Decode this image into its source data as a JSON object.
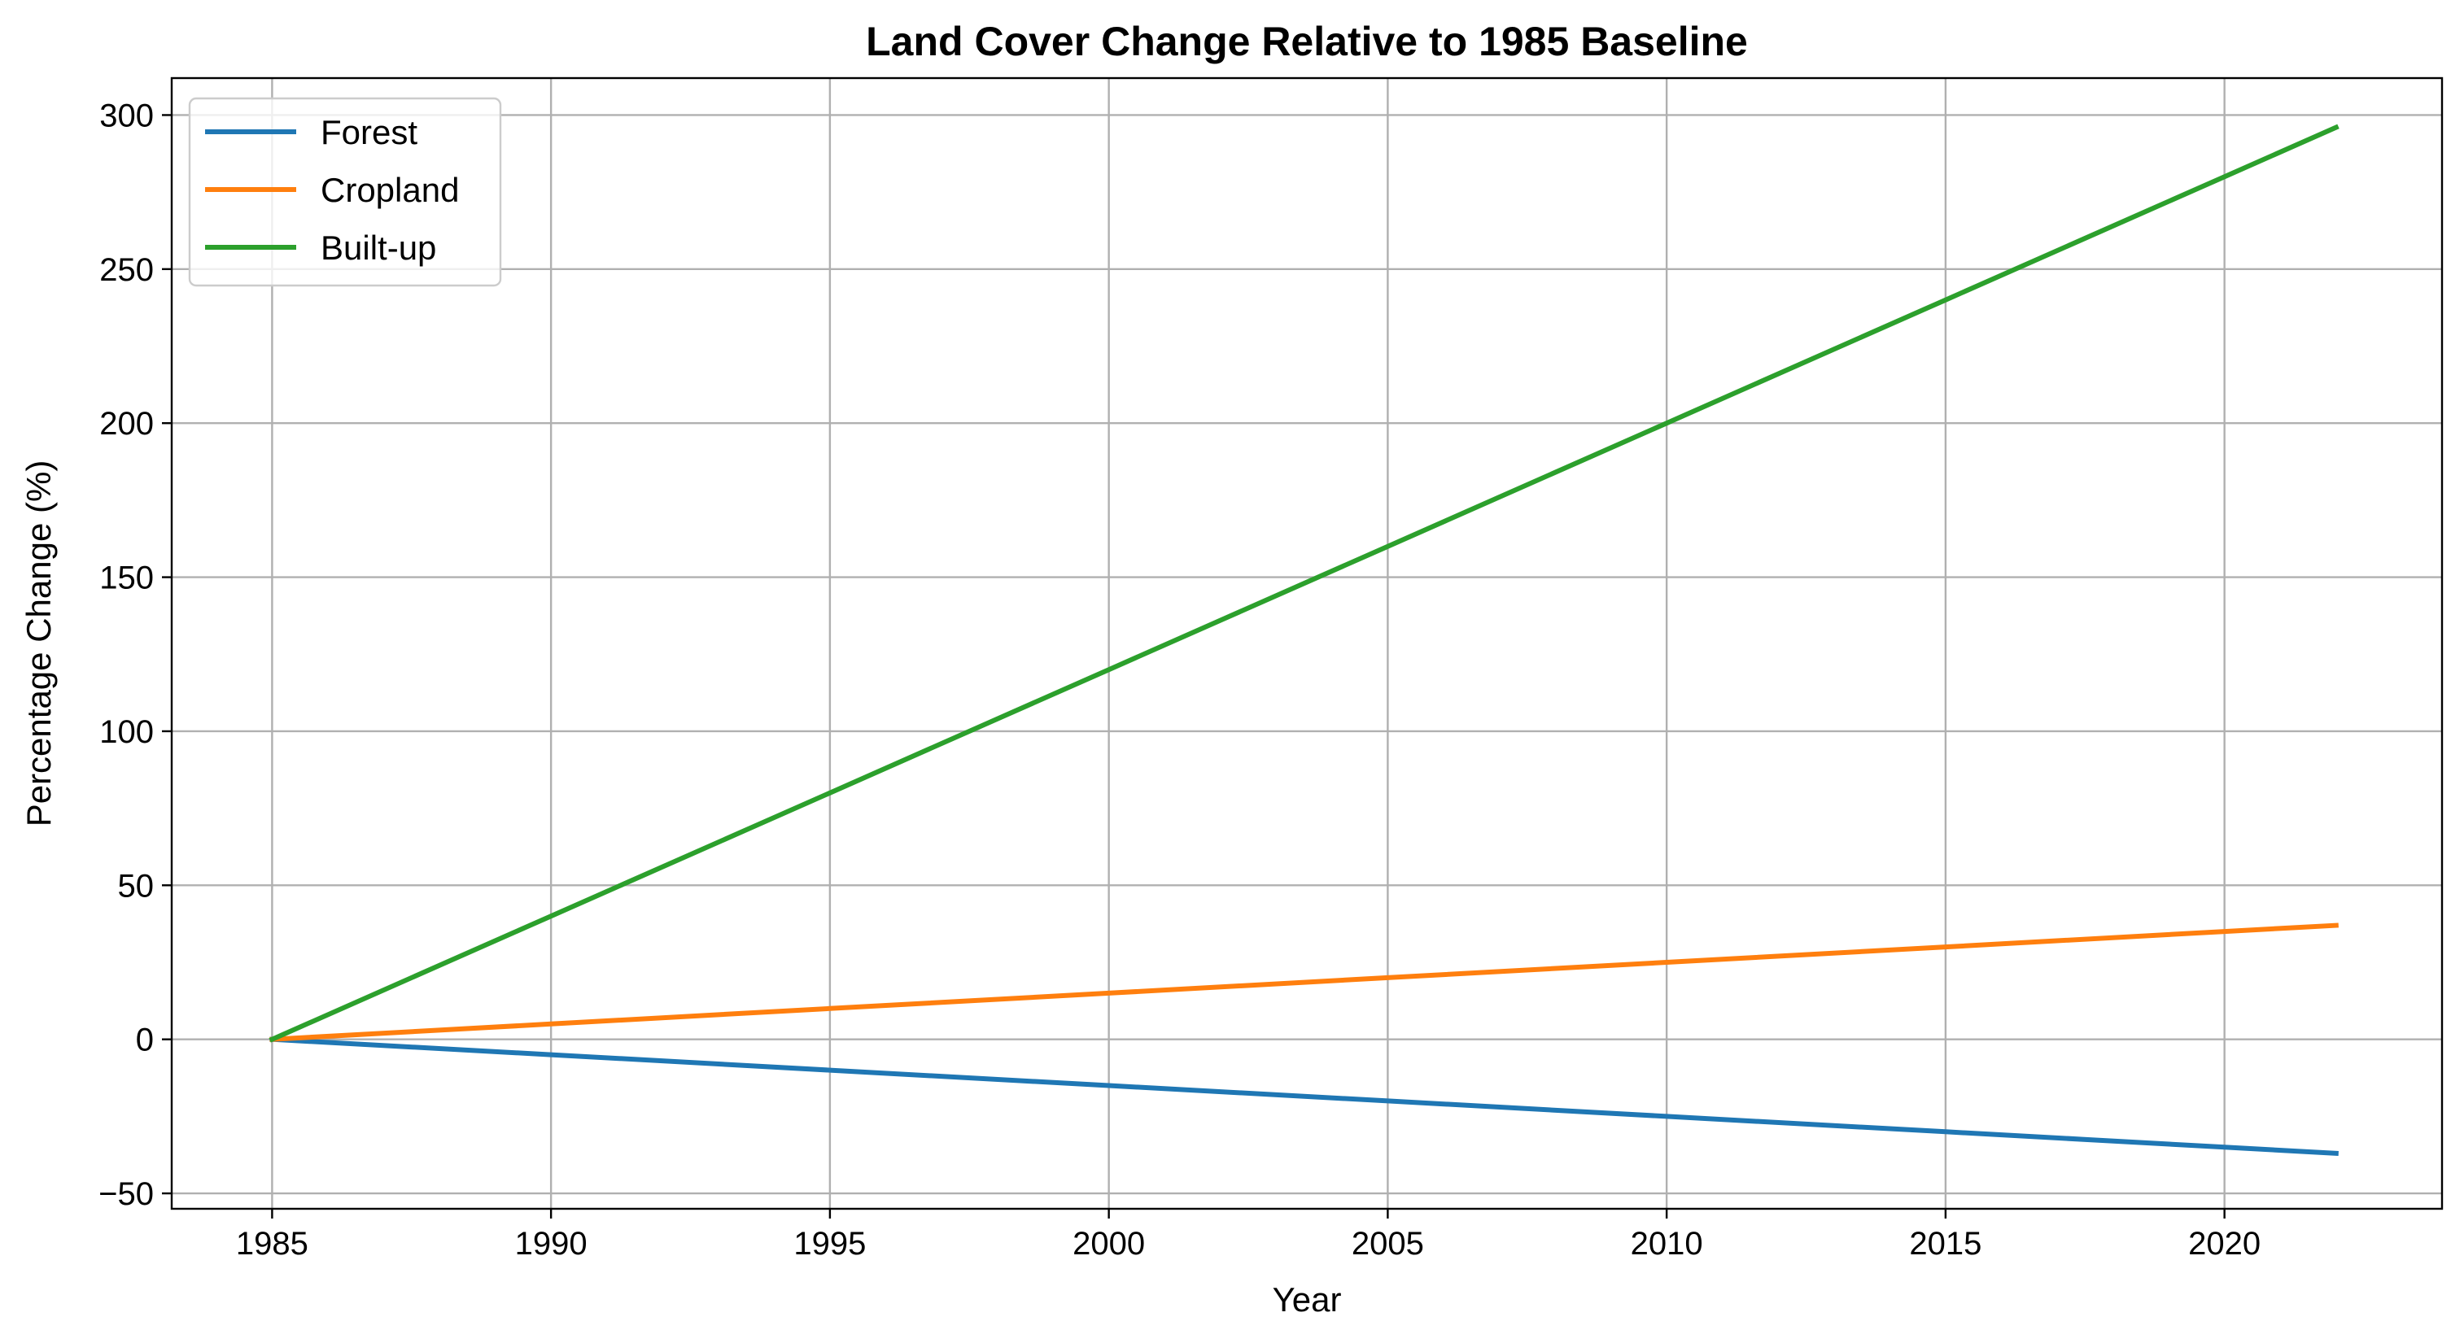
{
  "chart_data": {
    "type": "line",
    "title": "Land Cover Change Relative to 1985 Baseline",
    "xlabel": "Year",
    "ylabel": "Percentage Change (%)",
    "xlim": [
      1983.2,
      2023.9
    ],
    "ylim": [
      -55,
      312
    ],
    "xticks": [
      1985,
      1990,
      1995,
      2000,
      2005,
      2010,
      2015,
      2020
    ],
    "yticks": [
      -50,
      0,
      50,
      100,
      150,
      200,
      250,
      300
    ],
    "xtick_labels": [
      "1985",
      "1990",
      "1995",
      "2000",
      "2005",
      "2010",
      "2015",
      "2020"
    ],
    "ytick_labels": [
      "−50",
      "0",
      "50",
      "100",
      "150",
      "200",
      "250",
      "300"
    ],
    "grid": true,
    "legend_position": "top-left",
    "x": [
      1985,
      1990,
      1995,
      2000,
      2005,
      2010,
      2015,
      2020,
      2022
    ],
    "series": [
      {
        "name": "Forest",
        "color": "#1f77b4",
        "values": [
          0,
          -5,
          -10,
          -15,
          -20,
          -25,
          -30,
          -35,
          -37
        ]
      },
      {
        "name": "Cropland",
        "color": "#ff7f0e",
        "values": [
          0,
          5,
          10,
          15,
          20,
          25,
          30,
          35,
          37
        ]
      },
      {
        "name": "Built-up",
        "color": "#2ca02c",
        "values": [
          0,
          40,
          80,
          120,
          160,
          200,
          240,
          280,
          296
        ]
      }
    ]
  }
}
